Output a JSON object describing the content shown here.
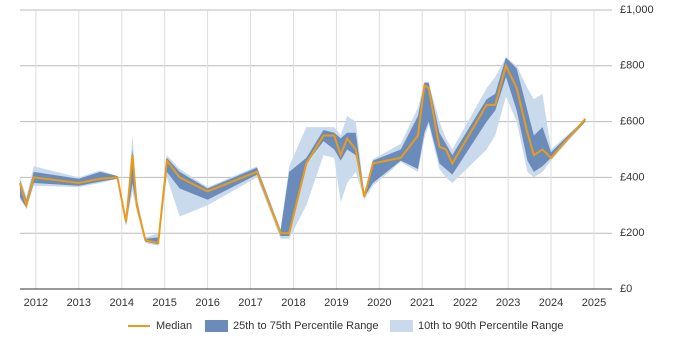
{
  "chart_data": {
    "type": "line",
    "x": [
      2011.63,
      2011.78,
      2011.95,
      2013.0,
      2013.5,
      2013.9,
      2014.1,
      2014.25,
      2014.35,
      2014.55,
      2014.85,
      2015.05,
      2015.35,
      2016.0,
      2017.15,
      2017.7,
      2017.9,
      2018.3,
      2018.7,
      2018.95,
      2019.1,
      2019.25,
      2019.45,
      2019.65,
      2019.85,
      2020.5,
      2020.9,
      2021.05,
      2021.15,
      2021.4,
      2021.55,
      2021.7,
      2022.5,
      2022.7,
      2022.95,
      2023.2,
      2023.45,
      2023.6,
      2023.8,
      2024.0,
      2024.8
    ],
    "series": [
      {
        "name": "Median",
        "color": "#e89b1c",
        "values": [
          380,
          300,
          400,
          380,
          395,
          400,
          240,
          480,
          300,
          175,
          165,
          460,
          400,
          350,
          420,
          200,
          200,
          450,
          550,
          550,
          480,
          540,
          500,
          330,
          450,
          470,
          550,
          730,
          720,
          510,
          500,
          450,
          660,
          660,
          800,
          720,
          560,
          480,
          500,
          470,
          610
        ]
      },
      {
        "name": "25th to 75th Percentile Range",
        "color": "#6b8cba",
        "low": [
          330,
          290,
          380,
          370,
          385,
          395,
          230,
          380,
          290,
          170,
          160,
          420,
          360,
          320,
          410,
          190,
          190,
          450,
          530,
          500,
          460,
          500,
          480,
          330,
          380,
          460,
          430,
          560,
          600,
          450,
          430,
          410,
          600,
          640,
          760,
          640,
          460,
          420,
          440,
          470,
          600
        ],
        "high": [
          390,
          320,
          420,
          395,
          420,
          405,
          250,
          500,
          320,
          180,
          185,
          470,
          420,
          360,
          435,
          210,
          420,
          470,
          570,
          560,
          540,
          560,
          560,
          340,
          460,
          500,
          620,
          740,
          740,
          560,
          520,
          480,
          680,
          700,
          830,
          790,
          640,
          550,
          580,
          490,
          610
        ]
      },
      {
        "name": "10th to 90th Percentile Range",
        "color": "#c9daec",
        "low": [
          320,
          290,
          370,
          365,
          380,
          395,
          225,
          350,
          280,
          165,
          155,
          400,
          260,
          300,
          400,
          180,
          180,
          300,
          480,
          470,
          310,
          380,
          420,
          320,
          370,
          455,
          420,
          540,
          590,
          430,
          400,
          380,
          500,
          550,
          690,
          600,
          420,
          400,
          420,
          460,
          600
        ],
        "high": [
          400,
          330,
          440,
          400,
          425,
          405,
          255,
          550,
          330,
          185,
          200,
          480,
          430,
          365,
          440,
          215,
          440,
          580,
          580,
          580,
          550,
          620,
          600,
          345,
          465,
          520,
          650,
          740,
          740,
          600,
          540,
          500,
          720,
          760,
          830,
          800,
          720,
          680,
          700,
          500,
          610
        ]
      }
    ],
    "xlim": [
      2011.63,
      2025.42
    ],
    "xticks": [
      2012,
      2013,
      2014,
      2015,
      2016,
      2017,
      2018,
      2019,
      2020,
      2021,
      2022,
      2023,
      2024,
      2025
    ],
    "ylim": [
      0,
      1000
    ],
    "yticks": [
      {
        "value": 0,
        "label": "£0"
      },
      {
        "value": 200,
        "label": "£200"
      },
      {
        "value": 400,
        "label": "£400"
      },
      {
        "value": 600,
        "label": "£600"
      },
      {
        "value": 800,
        "label": "£800"
      },
      {
        "value": 1000,
        "label": "£1,000"
      }
    ],
    "grid": true
  }
}
